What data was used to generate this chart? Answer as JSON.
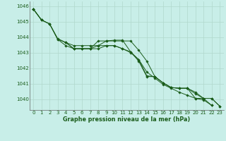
{
  "title": "Graphe pression niveau de la mer (hPa)",
  "background_color": "#c8eee8",
  "grid_color": "#b0d8cc",
  "line_color": "#1a5c1a",
  "marker_color": "#1a5c1a",
  "xlim": [
    -0.5,
    23.5
  ],
  "ylim": [
    1039.3,
    1046.3
  ],
  "yticks": [
    1040,
    1041,
    1042,
    1043,
    1044,
    1045,
    1046
  ],
  "xticks": [
    0,
    1,
    2,
    3,
    4,
    5,
    6,
    7,
    8,
    9,
    10,
    11,
    12,
    13,
    14,
    15,
    16,
    17,
    18,
    19,
    20,
    21,
    22,
    23
  ],
  "series": [
    [
      1045.8,
      1045.1,
      1044.85,
      1043.9,
      1043.65,
      1043.45,
      1043.45,
      1043.45,
      1043.45,
      1043.75,
      1043.8,
      1043.8,
      1043.05,
      1042.55,
      1041.5,
      1041.45,
      1041.05,
      1040.75,
      1040.7,
      1040.7,
      1040.05,
      1040.05,
      1039.6,
      null
    ],
    [
      1045.8,
      1045.1,
      1044.85,
      1043.85,
      1043.45,
      1043.25,
      1043.25,
      1043.25,
      1043.45,
      1043.45,
      1043.45,
      1043.25,
      1043.0,
      1042.55,
      1041.75,
      1041.35,
      1040.95,
      1040.7,
      1040.45,
      1040.25,
      1040.05,
      1039.95,
      1039.6,
      null
    ],
    [
      1045.8,
      1045.1,
      null,
      null,
      1043.65,
      1043.25,
      1043.25,
      1043.25,
      1043.75,
      1043.75,
      1043.75,
      1043.75,
      1043.75,
      1043.15,
      1042.45,
      1041.45,
      1041.05,
      1040.75,
      1040.7,
      1040.7,
      1040.45,
      1040.05,
      1040.05,
      1039.55
    ],
    [
      1045.8,
      1045.1,
      1044.85,
      1043.85,
      1043.65,
      1043.25,
      1043.25,
      1043.25,
      1043.25,
      1043.45,
      1043.45,
      1043.25,
      1043.05,
      1042.45,
      1041.45,
      1041.45,
      1041.05,
      1040.75,
      1040.7,
      1040.7,
      1040.35,
      1040.05,
      1040.05,
      1039.55
    ]
  ]
}
